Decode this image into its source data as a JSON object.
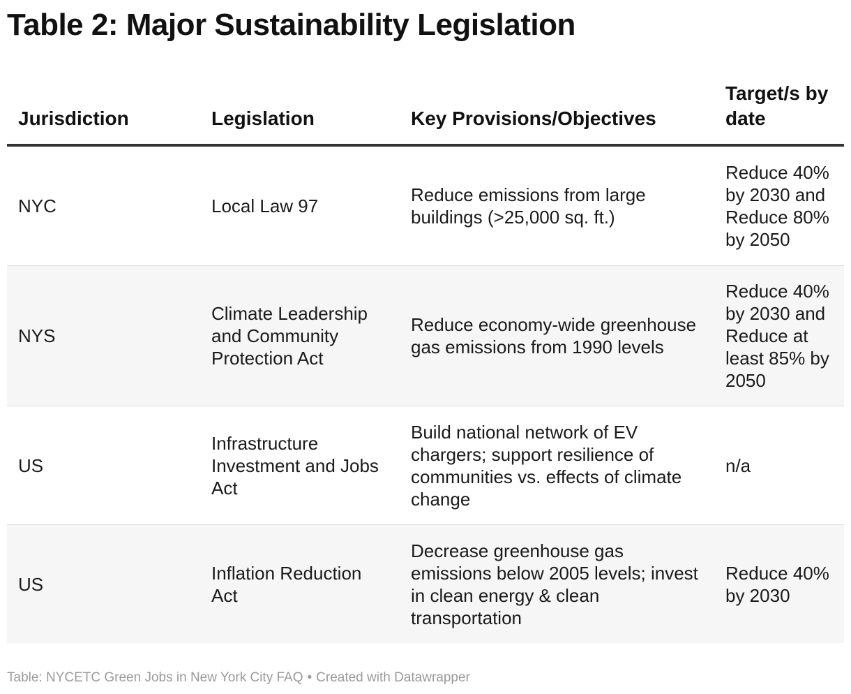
{
  "chart_data": {
    "type": "table",
    "title": "Table 2: Major Sustainability Legislation",
    "columns": [
      "Jurisdiction",
      "Legislation",
      "Key Provisions/Objectives",
      "Target/s by date"
    ],
    "rows": [
      {
        "jurisdiction": "NYC",
        "legislation": "Local Law 97",
        "provisions": "Reduce emissions from large buildings (>25,000 sq. ft.)",
        "target": "Reduce 40% by 2030 and Reduce 80% by 2050"
      },
      {
        "jurisdiction": "NYS",
        "legislation": "Climate Leadership and Community Protection Act",
        "provisions": "Reduce economy-wide greenhouse gas emissions from 1990 levels",
        "target": "Reduce 40% by 2030 and Reduce at least 85% by 2050"
      },
      {
        "jurisdiction": "US",
        "legislation": "Infrastructure Investment and Jobs Act",
        "provisions": "Build national network of EV chargers; support resilience of communities vs. effects of climate change",
        "target": "n/a"
      },
      {
        "jurisdiction": "US",
        "legislation": "Inflation Reduction Act",
        "provisions": "Decrease greenhouse gas emissions below 2005 levels; invest in clean energy & clean transportation",
        "target": "Reduce 40% by 2030"
      }
    ]
  },
  "footer": {
    "source": "Table: NYCETC Green Jobs in New York City FAQ",
    "separator": "•",
    "credit": "Created with Datawrapper"
  },
  "colors": {
    "header_rule": "#333333",
    "row_alt_background": "#f6f6f6",
    "row_divider": "#dddddd",
    "footer_text": "#9a9a9a"
  }
}
